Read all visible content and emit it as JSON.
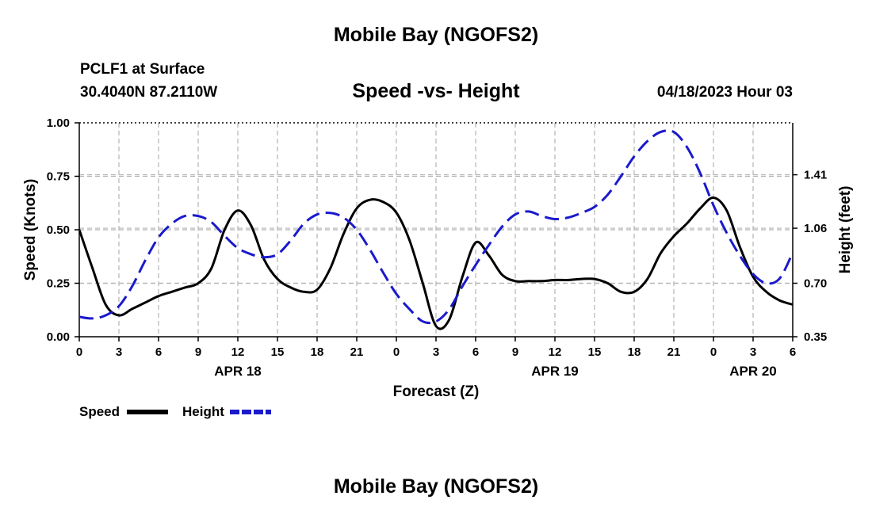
{
  "header": {
    "title": "Mobile Bay (NGOFS2)",
    "station": "PCLF1 at Surface",
    "coords": "30.4040N  87.2110W",
    "subtitle": "Speed -vs- Height",
    "datetime": "04/18/2023 Hour 03"
  },
  "footer": {
    "title": "Mobile Bay (NGOFS2)"
  },
  "chart_data": {
    "type": "line",
    "xlabel": "Forecast (Z)",
    "ylabel_left": "Speed (Knots)",
    "ylabel_right": "Height (feet)",
    "x_range": [
      0,
      54
    ],
    "y_left_range": [
      0,
      1
    ],
    "y_right_range": [
      0.35,
      1.75
    ],
    "x_ticks": [
      {
        "x": 0,
        "label": "0"
      },
      {
        "x": 3,
        "label": "3"
      },
      {
        "x": 6,
        "label": "6"
      },
      {
        "x": 9,
        "label": "9"
      },
      {
        "x": 12,
        "label": "12"
      },
      {
        "x": 15,
        "label": "15"
      },
      {
        "x": 18,
        "label": "18"
      },
      {
        "x": 21,
        "label": "21"
      },
      {
        "x": 24,
        "label": "0"
      },
      {
        "x": 27,
        "label": "3"
      },
      {
        "x": 30,
        "label": "6"
      },
      {
        "x": 33,
        "label": "9"
      },
      {
        "x": 36,
        "label": "12"
      },
      {
        "x": 39,
        "label": "15"
      },
      {
        "x": 42,
        "label": "18"
      },
      {
        "x": 45,
        "label": "21"
      },
      {
        "x": 48,
        "label": "0"
      },
      {
        "x": 51,
        "label": "3"
      },
      {
        "x": 54,
        "label": "6"
      }
    ],
    "date_labels": [
      {
        "x": 12,
        "label": "APR 18"
      },
      {
        "x": 36,
        "label": "APR 19"
      },
      {
        "x": 51,
        "label": "APR 20"
      }
    ],
    "y_left_ticks": [
      {
        "v": 0,
        "label": "0.00"
      },
      {
        "v": 0.25,
        "label": "0.25"
      },
      {
        "v": 0.5,
        "label": "0.50"
      },
      {
        "v": 0.75,
        "label": "0.75"
      },
      {
        "v": 1.0,
        "label": "1.00"
      }
    ],
    "y_right_ticks": [
      {
        "v": 0.35,
        "label": "0.35"
      },
      {
        "v": 0.7,
        "label": "0.70"
      },
      {
        "v": 1.06,
        "label": "1.06"
      },
      {
        "v": 1.41,
        "label": "1.41"
      }
    ],
    "grid": true,
    "legend_position": "bottom-left",
    "series": [
      {
        "name": "Speed",
        "axis": "left",
        "color": "#000000",
        "dash": "solid",
        "points": [
          [
            0,
            0.5
          ],
          [
            1,
            0.32
          ],
          [
            2,
            0.15
          ],
          [
            3,
            0.1
          ],
          [
            4,
            0.13
          ],
          [
            5,
            0.16
          ],
          [
            6,
            0.19
          ],
          [
            7,
            0.21
          ],
          [
            8,
            0.23
          ],
          [
            9,
            0.25
          ],
          [
            10,
            0.32
          ],
          [
            11,
            0.5
          ],
          [
            12,
            0.59
          ],
          [
            13,
            0.52
          ],
          [
            14,
            0.36
          ],
          [
            15,
            0.27
          ],
          [
            16,
            0.23
          ],
          [
            17,
            0.21
          ],
          [
            18,
            0.22
          ],
          [
            19,
            0.32
          ],
          [
            20,
            0.48
          ],
          [
            21,
            0.6
          ],
          [
            22,
            0.64
          ],
          [
            23,
            0.63
          ],
          [
            24,
            0.58
          ],
          [
            25,
            0.45
          ],
          [
            26,
            0.25
          ],
          [
            27,
            0.05
          ],
          [
            28,
            0.08
          ],
          [
            29,
            0.28
          ],
          [
            30,
            0.44
          ],
          [
            31,
            0.38
          ],
          [
            32,
            0.29
          ],
          [
            33,
            0.26
          ],
          [
            34,
            0.26
          ],
          [
            35,
            0.26
          ],
          [
            36,
            0.265
          ],
          [
            37,
            0.265
          ],
          [
            38,
            0.27
          ],
          [
            39,
            0.27
          ],
          [
            40,
            0.25
          ],
          [
            41,
            0.21
          ],
          [
            42,
            0.21
          ],
          [
            43,
            0.27
          ],
          [
            44,
            0.39
          ],
          [
            45,
            0.47
          ],
          [
            46,
            0.53
          ],
          [
            47,
            0.6
          ],
          [
            48,
            0.65
          ],
          [
            49,
            0.59
          ],
          [
            50,
            0.42
          ],
          [
            51,
            0.28
          ],
          [
            52,
            0.21
          ],
          [
            53,
            0.17
          ],
          [
            54,
            0.15
          ]
        ]
      },
      {
        "name": "Height",
        "axis": "right",
        "color": "#1a1acc",
        "dash": "dashed",
        "points": [
          [
            0,
            0.48
          ],
          [
            1,
            0.47
          ],
          [
            2,
            0.49
          ],
          [
            3,
            0.55
          ],
          [
            4,
            0.68
          ],
          [
            5,
            0.85
          ],
          [
            6,
            1.0
          ],
          [
            7,
            1.09
          ],
          [
            8,
            1.14
          ],
          [
            9,
            1.14
          ],
          [
            10,
            1.1
          ],
          [
            11,
            1.01
          ],
          [
            12,
            0.93
          ],
          [
            13,
            0.89
          ],
          [
            14,
            0.87
          ],
          [
            15,
            0.89
          ],
          [
            16,
            0.98
          ],
          [
            17,
            1.09
          ],
          [
            18,
            1.15
          ],
          [
            19,
            1.16
          ],
          [
            20,
            1.13
          ],
          [
            21,
            1.05
          ],
          [
            22,
            0.92
          ],
          [
            23,
            0.77
          ],
          [
            24,
            0.63
          ],
          [
            25,
            0.53
          ],
          [
            26,
            0.45
          ],
          [
            27,
            0.45
          ],
          [
            28,
            0.53
          ],
          [
            29,
            0.68
          ],
          [
            30,
            0.82
          ],
          [
            31,
            0.95
          ],
          [
            32,
            1.07
          ],
          [
            33,
            1.15
          ],
          [
            34,
            1.17
          ],
          [
            35,
            1.14
          ],
          [
            36,
            1.12
          ],
          [
            37,
            1.13
          ],
          [
            38,
            1.16
          ],
          [
            39,
            1.2
          ],
          [
            40,
            1.28
          ],
          [
            41,
            1.4
          ],
          [
            42,
            1.53
          ],
          [
            43,
            1.63
          ],
          [
            44,
            1.69
          ],
          [
            45,
            1.69
          ],
          [
            46,
            1.59
          ],
          [
            47,
            1.42
          ],
          [
            48,
            1.21
          ],
          [
            49,
            1.03
          ],
          [
            50,
            0.88
          ],
          [
            51,
            0.76
          ],
          [
            52,
            0.7
          ],
          [
            53,
            0.73
          ],
          [
            54,
            0.9
          ]
        ]
      }
    ]
  }
}
